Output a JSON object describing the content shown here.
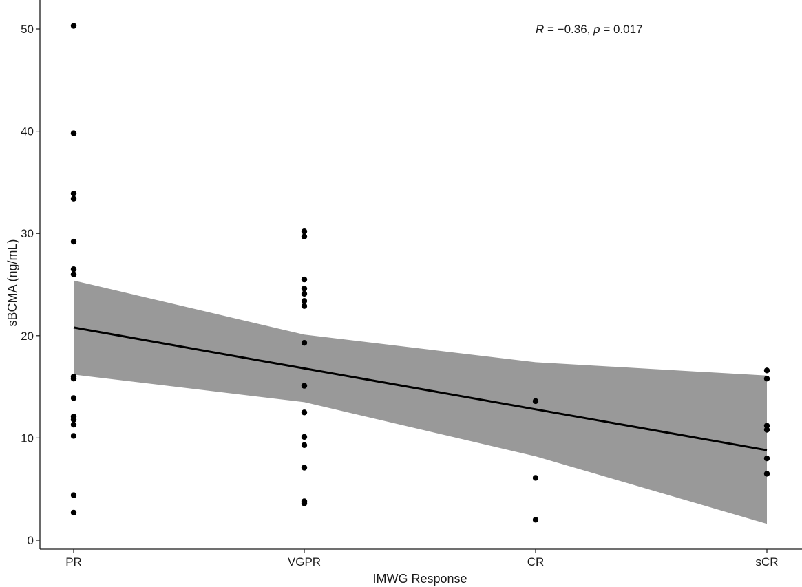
{
  "chart_data": {
    "type": "scatter",
    "xlabel": "IMWG Response",
    "ylabel": "sBCMA (ng/mL)",
    "categories": [
      "PR",
      "VGPR",
      "CR",
      "sCR"
    ],
    "yticks": [
      0,
      10,
      20,
      30,
      40,
      50
    ],
    "ylim": [
      -1,
      52.5
    ],
    "grid": false,
    "annotation": {
      "r_symbol": "R",
      "r_value": " = −0.36, ",
      "p_symbol": "p",
      "p_value": " = 0.017"
    },
    "points": [
      {
        "x": "PR",
        "y": 50.3
      },
      {
        "x": "PR",
        "y": 39.8
      },
      {
        "x": "PR",
        "y": 33.9
      },
      {
        "x": "PR",
        "y": 33.4
      },
      {
        "x": "PR",
        "y": 29.2
      },
      {
        "x": "PR",
        "y": 26.5
      },
      {
        "x": "PR",
        "y": 26.0
      },
      {
        "x": "PR",
        "y": 16.0
      },
      {
        "x": "PR",
        "y": 15.8
      },
      {
        "x": "PR",
        "y": 13.9
      },
      {
        "x": "PR",
        "y": 12.1
      },
      {
        "x": "PR",
        "y": 11.8
      },
      {
        "x": "PR",
        "y": 11.3
      },
      {
        "x": "PR",
        "y": 10.2
      },
      {
        "x": "PR",
        "y": 4.4
      },
      {
        "x": "PR",
        "y": 2.7
      },
      {
        "x": "VGPR",
        "y": 30.2
      },
      {
        "x": "VGPR",
        "y": 29.7
      },
      {
        "x": "VGPR",
        "y": 25.5
      },
      {
        "x": "VGPR",
        "y": 24.6
      },
      {
        "x": "VGPR",
        "y": 24.1
      },
      {
        "x": "VGPR",
        "y": 23.4
      },
      {
        "x": "VGPR",
        "y": 22.9
      },
      {
        "x": "VGPR",
        "y": 19.3
      },
      {
        "x": "VGPR",
        "y": 15.1
      },
      {
        "x": "VGPR",
        "y": 12.5
      },
      {
        "x": "VGPR",
        "y": 10.1
      },
      {
        "x": "VGPR",
        "y": 9.3
      },
      {
        "x": "VGPR",
        "y": 7.1
      },
      {
        "x": "VGPR",
        "y": 3.8
      },
      {
        "x": "VGPR",
        "y": 3.6
      },
      {
        "x": "CR",
        "y": 13.6
      },
      {
        "x": "CR",
        "y": 6.1
      },
      {
        "x": "CR",
        "y": 2.0
      },
      {
        "x": "sCR",
        "y": 16.6
      },
      {
        "x": "sCR",
        "y": 15.8
      },
      {
        "x": "sCR",
        "y": 11.2
      },
      {
        "x": "sCR",
        "y": 10.8
      },
      {
        "x": "sCR",
        "y": 8.0
      },
      {
        "x": "sCR",
        "y": 6.5
      }
    ],
    "regression": {
      "line": [
        20.8,
        16.8,
        12.8,
        8.8
      ],
      "ci_upper": [
        25.4,
        20.1,
        17.4,
        16.1
      ],
      "ci_lower": [
        16.2,
        13.5,
        8.2,
        1.6
      ]
    },
    "colors": {
      "points": "#000000",
      "line": "#000000",
      "band": "#999999",
      "axis": "#1a1a1a"
    }
  }
}
